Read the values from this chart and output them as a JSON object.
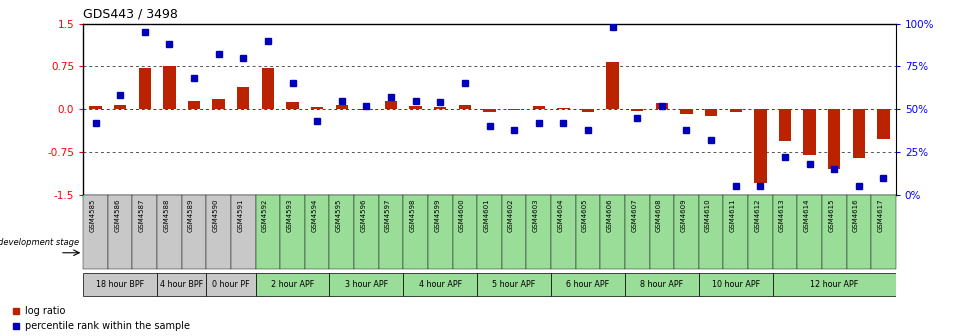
{
  "title": "GDS443 / 3498",
  "samples": [
    "GSM4585",
    "GSM4586",
    "GSM4587",
    "GSM4588",
    "GSM4589",
    "GSM4590",
    "GSM4591",
    "GSM4592",
    "GSM4593",
    "GSM4594",
    "GSM4595",
    "GSM4596",
    "GSM4597",
    "GSM4598",
    "GSM4599",
    "GSM4600",
    "GSM4601",
    "GSM4602",
    "GSM4603",
    "GSM4604",
    "GSM4605",
    "GSM4606",
    "GSM4607",
    "GSM4608",
    "GSM4609",
    "GSM4610",
    "GSM4611",
    "GSM4612",
    "GSM4613",
    "GSM4614",
    "GSM4615",
    "GSM4616",
    "GSM4617"
  ],
  "log_ratio": [
    0.05,
    0.08,
    0.72,
    0.75,
    0.15,
    0.18,
    0.38,
    0.72,
    0.12,
    0.03,
    0.08,
    -0.02,
    0.15,
    0.05,
    0.03,
    0.08,
    -0.05,
    -0.02,
    0.05,
    0.02,
    -0.05,
    0.82,
    -0.03,
    0.1,
    -0.08,
    -0.12,
    -0.05,
    -1.3,
    -0.55,
    -0.8,
    -1.05,
    -0.85,
    -0.52
  ],
  "percentile": [
    42,
    58,
    95,
    88,
    68,
    82,
    80,
    90,
    65,
    43,
    55,
    52,
    57,
    55,
    54,
    65,
    40,
    38,
    42,
    42,
    38,
    98,
    45,
    52,
    38,
    32,
    5,
    5,
    22,
    18,
    15,
    5,
    10
  ],
  "groups": [
    {
      "label": "18 hour BPF",
      "start": 0,
      "end": 3,
      "color": "#c8c8c8"
    },
    {
      "label": "4 hour BPF",
      "start": 3,
      "end": 5,
      "color": "#c8c8c8"
    },
    {
      "label": "0 hour PF",
      "start": 5,
      "end": 7,
      "color": "#c8c8c8"
    },
    {
      "label": "2 hour APF",
      "start": 7,
      "end": 10,
      "color": "#99dd99"
    },
    {
      "label": "3 hour APF",
      "start": 10,
      "end": 13,
      "color": "#99dd99"
    },
    {
      "label": "4 hour APF",
      "start": 13,
      "end": 16,
      "color": "#99dd99"
    },
    {
      "label": "5 hour APF",
      "start": 16,
      "end": 19,
      "color": "#99dd99"
    },
    {
      "label": "6 hour APF",
      "start": 19,
      "end": 22,
      "color": "#99dd99"
    },
    {
      "label": "8 hour APF",
      "start": 22,
      "end": 25,
      "color": "#99dd99"
    },
    {
      "label": "10 hour APF",
      "start": 25,
      "end": 28,
      "color": "#99dd99"
    },
    {
      "label": "12 hour APF",
      "start": 28,
      "end": 33,
      "color": "#99dd99"
    }
  ],
  "ylim_left": [
    -1.5,
    1.5
  ],
  "yticks_left": [
    -1.5,
    -0.75,
    0.0,
    0.75,
    1.5
  ],
  "yticks_right": [
    0,
    25,
    50,
    75,
    100
  ],
  "bar_color": "#bb2200",
  "dot_color": "#0000bb",
  "hline_color": "#cc0000",
  "dotline_color": "#555555",
  "background_color": "#ffffff"
}
